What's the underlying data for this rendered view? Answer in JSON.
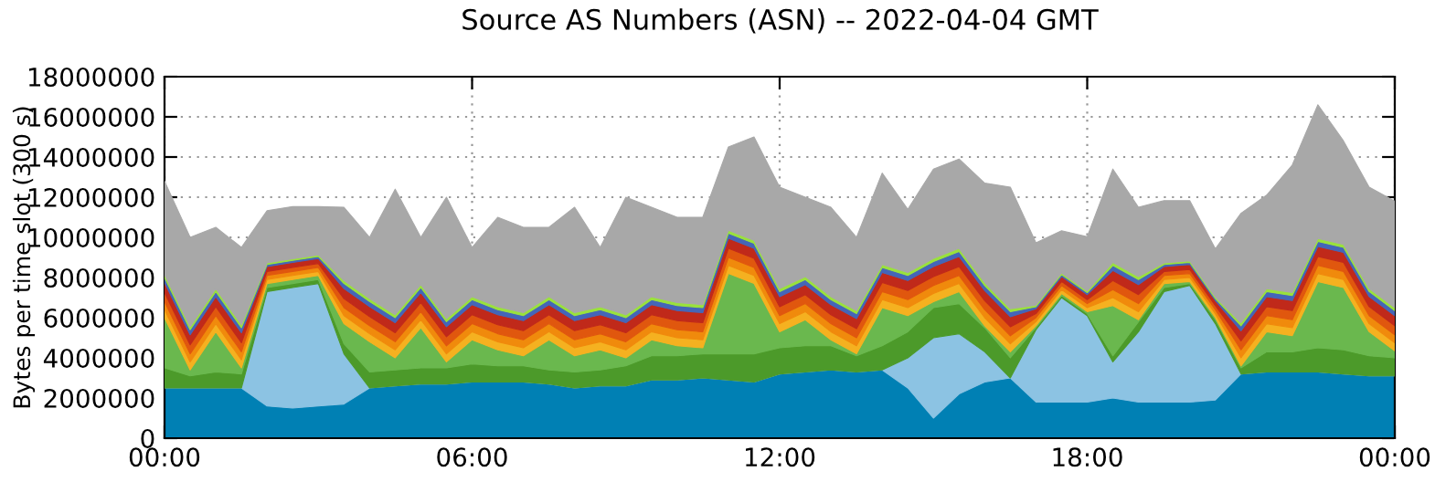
{
  "chart_data": {
    "type": "area",
    "stacked": true,
    "title": "Source AS Numbers (ASN) -- 2022-04-04 GMT",
    "ylabel": "Bytes per time slot (300 s)",
    "x": [
      "2022-04-04T00:00",
      "2022-04-04T00:30",
      "2022-04-04T01:00",
      "2022-04-04T01:30",
      "2022-04-04T02:00",
      "2022-04-04T02:30",
      "2022-04-04T03:00",
      "2022-04-04T03:30",
      "2022-04-04T04:00",
      "2022-04-04T04:30",
      "2022-04-04T05:00",
      "2022-04-04T05:30",
      "2022-04-04T06:00",
      "2022-04-04T06:30",
      "2022-04-04T07:00",
      "2022-04-04T07:30",
      "2022-04-04T08:00",
      "2022-04-04T08:30",
      "2022-04-04T09:00",
      "2022-04-04T09:30",
      "2022-04-04T10:00",
      "2022-04-04T10:30",
      "2022-04-04T11:00",
      "2022-04-04T11:30",
      "2022-04-04T12:00",
      "2022-04-04T12:30",
      "2022-04-04T13:00",
      "2022-04-04T13:30",
      "2022-04-04T14:00",
      "2022-04-04T14:30",
      "2022-04-04T15:00",
      "2022-04-04T15:30",
      "2022-04-04T16:00",
      "2022-04-04T16:30",
      "2022-04-04T17:00",
      "2022-04-04T17:30",
      "2022-04-04T18:00",
      "2022-04-04T18:30",
      "2022-04-04T19:00",
      "2022-04-04T19:30",
      "2022-04-04T20:00",
      "2022-04-04T20:30",
      "2022-04-04T21:00",
      "2022-04-04T21:30",
      "2022-04-04T22:00",
      "2022-04-04T22:30",
      "2022-04-04T23:00",
      "2022-04-04T23:30",
      "2022-04-05T00:00"
    ],
    "series": [
      {
        "color": "#0080b4",
        "values": [
          2500000.0,
          2500000.0,
          2500000.0,
          2500000.0,
          1600000.0,
          1500000.0,
          1600000.0,
          1700000.0,
          2500000.0,
          2600000.0,
          2700000.0,
          2700000.0,
          2800000.0,
          2800000.0,
          2800000.0,
          2700000.0,
          2500000.0,
          2600000.0,
          2600000.0,
          2900000.0,
          2900000.0,
          3000000.0,
          2900000.0,
          2800000.0,
          3200000.0,
          3300000.0,
          3400000.0,
          3300000.0,
          3400000.0,
          2500000.0,
          1000000.0,
          2200000.0,
          2800000.0,
          3000000.0,
          1800000.0,
          1800000.0,
          1800000.0,
          2000000.0,
          1800000.0,
          1800000.0,
          1800000.0,
          1900000.0,
          3200000.0,
          3300000.0,
          3300000.0,
          3300000.0,
          3200000.0,
          3100000.0,
          3100000.0
        ]
      },
      {
        "color": "#8cc3e3",
        "values": [
          0,
          0,
          0,
          0,
          5700000.0,
          6000000.0,
          6100000.0,
          2500000.0,
          0,
          0,
          0,
          0,
          0,
          0,
          0,
          0,
          0,
          0,
          0,
          0,
          0,
          0,
          0,
          0,
          0,
          0,
          0,
          0,
          0,
          1500000.0,
          4000000.0,
          3000000.0,
          1500000.0,
          0,
          3600000.0,
          5200000.0,
          4300000.0,
          1800000.0,
          3500000.0,
          5500000.0,
          5800000.0,
          3800000.0,
          0,
          0,
          0,
          0,
          0,
          0,
          0
        ]
      },
      {
        "color": "#4c9a2a",
        "values": [
          1000000.0,
          600000.0,
          800000.0,
          700000.0,
          200000.0,
          200000.0,
          200000.0,
          500000.0,
          800000.0,
          800000.0,
          800000.0,
          800000.0,
          900000.0,
          800000.0,
          800000.0,
          700000.0,
          800000.0,
          800000.0,
          1000000.0,
          1200000.0,
          1200000.0,
          1200000.0,
          1300000.0,
          1400000.0,
          1300000.0,
          1300000.0,
          1200000.0,
          800000.0,
          1200000.0,
          1300000.0,
          1500000.0,
          1500000.0,
          1200000.0,
          1000000.0,
          100000.0,
          100000.0,
          100000.0,
          300000.0,
          500000.0,
          200000.0,
          100000.0,
          200000.0,
          300000.0,
          1000000.0,
          1000000.0,
          1200000.0,
          1200000.0,
          1000000.0,
          900000.0
        ]
      },
      {
        "color": "#6ab84e",
        "values": [
          2500000.0,
          300000.0,
          2000000.0,
          300000.0,
          200000.0,
          200000.0,
          200000.0,
          1000000.0,
          1500000.0,
          600000.0,
          2000000.0,
          300000.0,
          1200000.0,
          800000.0,
          500000.0,
          1500000.0,
          800000.0,
          1000000.0,
          400000.0,
          800000.0,
          500000.0,
          300000.0,
          4000000.0,
          3500000.0,
          800000.0,
          1300000.0,
          300000.0,
          100000.0,
          1900000.0,
          800000.0,
          300000.0,
          600000.0,
          100000.0,
          300000.0,
          100000.0,
          100000.0,
          100000.0,
          2500000.0,
          100000.0,
          200000.0,
          100000.0,
          100000.0,
          100000.0,
          1000000.0,
          800000.0,
          3300000.0,
          3100000.0,
          1200000.0,
          350000.0
        ]
      },
      {
        "color": "#f5b120",
        "values": [
          400000.0,
          400000.0,
          400000.0,
          400000.0,
          200000.0,
          200000.0,
          200000.0,
          400000.0,
          400000.0,
          400000.0,
          400000.0,
          400000.0,
          400000.0,
          400000.0,
          400000.0,
          400000.0,
          400000.0,
          400000.0,
          400000.0,
          400000.0,
          400000.0,
          400000.0,
          400000.0,
          400000.0,
          400000.0,
          400000.0,
          400000.0,
          400000.0,
          400000.0,
          400000.0,
          400000.0,
          400000.0,
          400000.0,
          400000.0,
          200000.0,
          200000.0,
          200000.0,
          400000.0,
          400000.0,
          200000.0,
          200000.0,
          200000.0,
          400000.0,
          400000.0,
          400000.0,
          400000.0,
          400000.0,
          400000.0,
          400000.0
        ]
      },
      {
        "color": "#f08a0c",
        "values": [
          400000.0,
          400000.0,
          400000.0,
          400000.0,
          200000.0,
          200000.0,
          200000.0,
          400000.0,
          400000.0,
          400000.0,
          400000.0,
          400000.0,
          400000.0,
          400000.0,
          400000.0,
          400000.0,
          400000.0,
          400000.0,
          400000.0,
          400000.0,
          400000.0,
          400000.0,
          400000.0,
          400000.0,
          400000.0,
          400000.0,
          400000.0,
          400000.0,
          400000.0,
          400000.0,
          400000.0,
          400000.0,
          400000.0,
          400000.0,
          200000.0,
          200000.0,
          200000.0,
          400000.0,
          400000.0,
          200000.0,
          200000.0,
          200000.0,
          400000.0,
          400000.0,
          400000.0,
          400000.0,
          400000.0,
          400000.0,
          400000.0
        ]
      },
      {
        "color": "#e0570e",
        "values": [
          450000.0,
          450000.0,
          450000.0,
          450000.0,
          200000.0,
          200000.0,
          200000.0,
          450000.0,
          450000.0,
          450000.0,
          450000.0,
          450000.0,
          450000.0,
          450000.0,
          450000.0,
          450000.0,
          450000.0,
          450000.0,
          450000.0,
          450000.0,
          450000.0,
          450000.0,
          450000.0,
          450000.0,
          450000.0,
          450000.0,
          450000.0,
          450000.0,
          450000.0,
          450000.0,
          450000.0,
          450000.0,
          450000.0,
          450000.0,
          200000.0,
          200000.0,
          200000.0,
          450000.0,
          450000.0,
          200000.0,
          200000.0,
          200000.0,
          450000.0,
          450000.0,
          450000.0,
          450000.0,
          450000.0,
          450000.0,
          450000.0
        ]
      },
      {
        "color": "#c0291a",
        "values": [
          500000.0,
          500000.0,
          500000.0,
          500000.0,
          250000.0,
          250000.0,
          250000.0,
          500000.0,
          500000.0,
          500000.0,
          500000.0,
          500000.0,
          500000.0,
          500000.0,
          500000.0,
          500000.0,
          500000.0,
          500000.0,
          500000.0,
          500000.0,
          500000.0,
          500000.0,
          500000.0,
          500000.0,
          500000.0,
          500000.0,
          500000.0,
          500000.0,
          500000.0,
          500000.0,
          500000.0,
          500000.0,
          500000.0,
          500000.0,
          250000.0,
          250000.0,
          250000.0,
          500000.0,
          500000.0,
          250000.0,
          250000.0,
          250000.0,
          500000.0,
          500000.0,
          500000.0,
          500000.0,
          500000.0,
          500000.0,
          500000.0
        ]
      },
      {
        "color": "#4466b8",
        "values": [
          250000.0,
          250000.0,
          250000.0,
          250000.0,
          100000.0,
          100000.0,
          100000.0,
          250000.0,
          250000.0,
          250000.0,
          250000.0,
          250000.0,
          250000.0,
          250000.0,
          250000.0,
          250000.0,
          250000.0,
          250000.0,
          250000.0,
          250000.0,
          250000.0,
          250000.0,
          250000.0,
          250000.0,
          250000.0,
          250000.0,
          250000.0,
          250000.0,
          250000.0,
          250000.0,
          250000.0,
          250000.0,
          250000.0,
          250000.0,
          100000.0,
          100000.0,
          100000.0,
          250000.0,
          250000.0,
          100000.0,
          100000.0,
          100000.0,
          250000.0,
          250000.0,
          250000.0,
          250000.0,
          250000.0,
          250000.0,
          250000.0
        ]
      },
      {
        "color": "#9ae23c",
        "values": [
          150000.0,
          150000.0,
          150000.0,
          150000.0,
          80000.0,
          80000.0,
          80000.0,
          150000.0,
          150000.0,
          150000.0,
          150000.0,
          150000.0,
          150000.0,
          150000.0,
          150000.0,
          150000.0,
          150000.0,
          150000.0,
          150000.0,
          150000.0,
          150000.0,
          150000.0,
          150000.0,
          150000.0,
          150000.0,
          150000.0,
          150000.0,
          150000.0,
          150000.0,
          150000.0,
          150000.0,
          150000.0,
          150000.0,
          150000.0,
          80000.0,
          80000.0,
          80000.0,
          150000.0,
          150000.0,
          80000.0,
          80000.0,
          80000.0,
          150000.0,
          150000.0,
          150000.0,
          150000.0,
          150000.0,
          150000.0,
          150000.0
        ]
      },
      {
        "color": "#a8a8a8",
        "values": [
          4650000.0,
          4450000.0,
          3050000.0,
          3850000.0,
          2600000.0,
          2600000.0,
          2400000.0,
          3650000.0,
          3050000.0,
          6250000.0,
          2350000.0,
          6050000.0,
          2450000.0,
          4450000.0,
          4250000.0,
          3450000.0,
          5250000.0,
          2950000.0,
          5850000.0,
          4450000.0,
          4250000.0,
          4350000.0,
          4150000.0,
          5150000.0,
          5050000.0,
          3950000.0,
          4450000.0,
          3650000.0,
          4550000.0,
          3150000.0,
          4450000.0,
          4450000.0,
          4950000.0,
          6050000.0,
          3100000.0,
          2100000.0,
          2700000.0,
          4650000.0,
          3450000.0,
          3100000.0,
          3000000.0,
          2400000.0,
          5450000.0,
          4650000.0,
          6350000.0,
          6650000.0,
          5150000.0,
          5050000.0,
          5300000.0
        ]
      }
    ],
    "xlim": [
      "2022-04-04T00:00",
      "2022-04-05T00:00"
    ],
    "xticks": [
      {
        "value": "2022-04-04T00:00",
        "label": "00:00"
      },
      {
        "value": "2022-04-04T06:00",
        "label": "06:00"
      },
      {
        "value": "2022-04-04T12:00",
        "label": "12:00"
      },
      {
        "value": "2022-04-04T18:00",
        "label": "18:00"
      },
      {
        "value": "2022-04-05T00:00",
        "label": "00:00"
      }
    ],
    "ylim": [
      0,
      18000000
    ],
    "yticks": [
      0,
      2000000,
      4000000,
      6000000,
      8000000,
      10000000,
      12000000,
      14000000,
      16000000,
      18000000
    ],
    "grid": true
  }
}
